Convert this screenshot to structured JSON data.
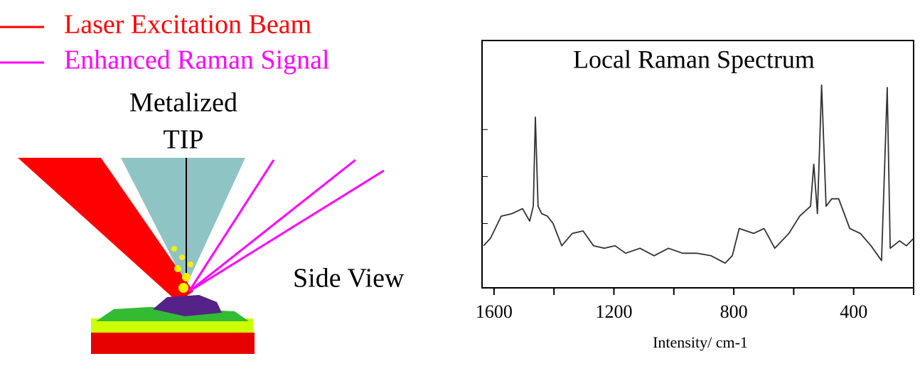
{
  "diagram": {
    "legend": [
      {
        "label": "Laser Excitation Beam",
        "color": "#ff0000"
      },
      {
        "label": "Enhanced Raman Signal",
        "color": "#ff00ff"
      }
    ],
    "tip_label": [
      "Metalized",
      "TIP"
    ],
    "view_label": "Side View"
  },
  "chart_data": {
    "type": "line",
    "title": "Local Raman Spectrum",
    "x_label": "Intensity/ cm-1",
    "color": "#333333",
    "x": [
      1635,
      1612,
      1576,
      1540,
      1505,
      1481,
      1469,
      1462,
      1453,
      1441,
      1422,
      1403,
      1374,
      1339,
      1303,
      1268,
      1232,
      1196,
      1161,
      1113,
      1066,
      1018,
      971,
      924,
      876,
      829,
      805,
      782,
      734,
      699,
      663,
      616,
      580,
      544,
      533,
      521,
      507,
      492,
      473,
      450,
      413,
      378,
      342,
      307,
      288,
      278,
      247,
      224,
      200
    ],
    "values": [
      17,
      20,
      29,
      30,
      32,
      27,
      33,
      69,
      33,
      30,
      29,
      26,
      17,
      22,
      23,
      17,
      16,
      17,
      14,
      16,
      13,
      16,
      14,
      14,
      13,
      10,
      13,
      24,
      22,
      24,
      16,
      22,
      29,
      33,
      50,
      30,
      82,
      33,
      36,
      36,
      24,
      22,
      17,
      11,
      81,
      16,
      19,
      17,
      20
    ],
    "xlim": [
      1640,
      200
    ],
    "ylim": [
      0,
      100
    ],
    "xticks": [
      1600,
      1200,
      800,
      400
    ],
    "xminor_ticks": [
      1400,
      1000,
      600,
      200
    ],
    "yminor_ticks": [
      64,
      45,
      26
    ]
  }
}
